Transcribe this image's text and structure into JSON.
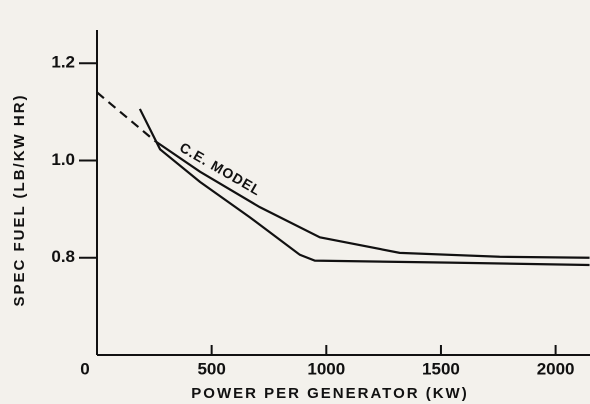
{
  "chart_data": {
    "type": "line",
    "annotation": "C.E. MODEL",
    "xlabel": "POWER PER GENERATOR (KW)",
    "ylabel": "SPEC FUEL (LB/KW HR)",
    "xlim": [
      0,
      2150
    ],
    "ylim": [
      0.6,
      1.33
    ],
    "xticks": [
      0,
      500,
      1000,
      1500,
      2000
    ],
    "yticks": [
      {
        "value": 0.8,
        "label": "0.8"
      },
      {
        "value": 1.0,
        "label": "1.0"
      },
      {
        "value": 1.2,
        "label": "1.2"
      }
    ],
    "series": [
      {
        "color": "#111111",
        "style": "dashed",
        "x": [
          0,
          253
        ],
        "values": [
          1.14,
          1.04
        ]
      },
      {
        "color": "#111111",
        "style": "solid",
        "x": [
          253,
          449,
          710,
          972,
          1320,
          1756,
          2148
        ],
        "values": [
          1.04,
          0.977,
          0.904,
          0.842,
          0.81,
          0.802,
          0.8
        ]
      },
      {
        "color": "#111111",
        "style": "solid",
        "x": [
          187,
          275,
          449,
          667,
          885,
          950,
          1538,
          2148
        ],
        "values": [
          1.106,
          1.023,
          0.956,
          0.883,
          0.806,
          0.794,
          0.79,
          0.785
        ]
      }
    ]
  }
}
